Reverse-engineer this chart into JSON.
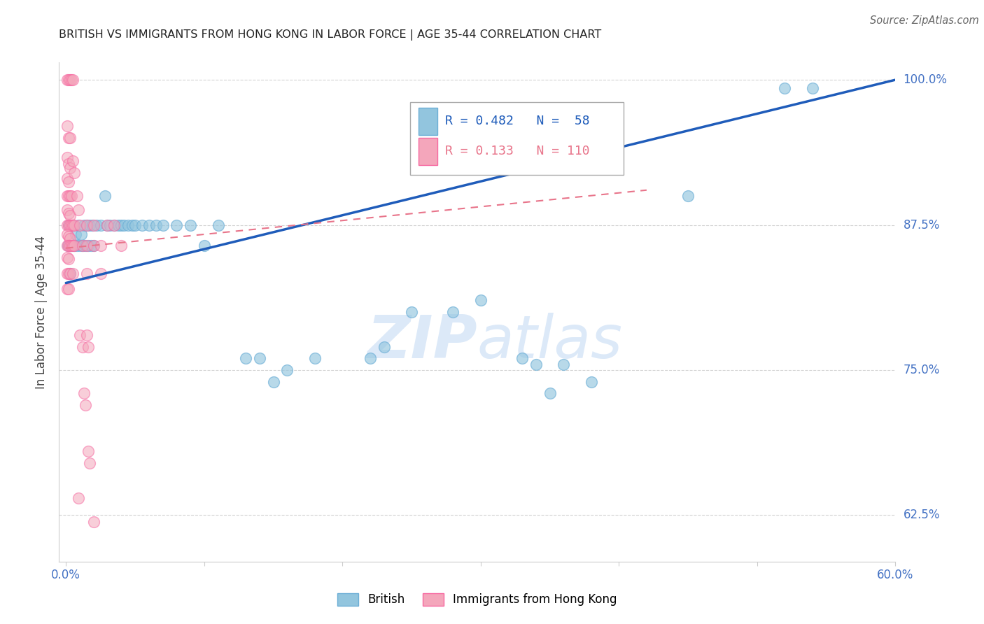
{
  "title": "BRITISH VS IMMIGRANTS FROM HONG KONG IN LABOR FORCE | AGE 35-44 CORRELATION CHART",
  "source": "Source: ZipAtlas.com",
  "ylabel": "In Labor Force | Age 35-44",
  "xlim": [
    -0.005,
    0.6
  ],
  "ylim": [
    0.585,
    1.015
  ],
  "yticks": [
    0.625,
    0.75,
    0.875,
    1.0
  ],
  "ytick_labels": [
    "62.5%",
    "75.0%",
    "87.5%",
    "100.0%"
  ],
  "xticks": [
    0.0,
    0.1,
    0.2,
    0.3,
    0.4,
    0.5,
    0.6
  ],
  "xtick_labels": [
    "0.0%",
    "",
    "",
    "",
    "",
    "",
    "60.0%"
  ],
  "axis_color": "#4472c4",
  "grid_color": "#c8c8c8",
  "watermark_zip": "ZIP",
  "watermark_atlas": "atlas",
  "watermark_color": "#dce9f8",
  "legend_blue_label": "British",
  "legend_pink_label": "Immigrants from Hong Kong",
  "blue_R": 0.482,
  "blue_N": 58,
  "pink_R": 0.133,
  "pink_N": 110,
  "blue_color": "#92c5de",
  "pink_color": "#f4a6bb",
  "blue_edge_color": "#6baed6",
  "pink_edge_color": "#f768a1",
  "trendline_blue_color": "#1f5cba",
  "trendline_pink_color": "#e8748a",
  "blue_scatter": [
    [
      0.0015,
      0.857
    ],
    [
      0.002,
      0.875
    ],
    [
      0.003,
      0.833
    ],
    [
      0.004,
      0.857
    ],
    [
      0.005,
      0.875
    ],
    [
      0.006,
      0.857
    ],
    [
      0.007,
      0.867
    ],
    [
      0.008,
      0.857
    ],
    [
      0.009,
      0.875
    ],
    [
      0.01,
      0.857
    ],
    [
      0.011,
      0.867
    ],
    [
      0.012,
      0.857
    ],
    [
      0.013,
      0.875
    ],
    [
      0.014,
      0.857
    ],
    [
      0.015,
      0.875
    ],
    [
      0.016,
      0.857
    ],
    [
      0.017,
      0.875
    ],
    [
      0.018,
      0.857
    ],
    [
      0.019,
      0.875
    ],
    [
      0.02,
      0.857
    ],
    [
      0.022,
      0.875
    ],
    [
      0.025,
      0.875
    ],
    [
      0.028,
      0.9
    ],
    [
      0.03,
      0.875
    ],
    [
      0.032,
      0.875
    ],
    [
      0.035,
      0.875
    ],
    [
      0.038,
      0.875
    ],
    [
      0.04,
      0.875
    ],
    [
      0.042,
      0.875
    ],
    [
      0.045,
      0.875
    ],
    [
      0.048,
      0.875
    ],
    [
      0.05,
      0.875
    ],
    [
      0.055,
      0.875
    ],
    [
      0.06,
      0.875
    ],
    [
      0.065,
      0.875
    ],
    [
      0.07,
      0.875
    ],
    [
      0.08,
      0.875
    ],
    [
      0.09,
      0.875
    ],
    [
      0.1,
      0.857
    ],
    [
      0.11,
      0.875
    ],
    [
      0.13,
      0.76
    ],
    [
      0.14,
      0.76
    ],
    [
      0.15,
      0.74
    ],
    [
      0.16,
      0.75
    ],
    [
      0.18,
      0.76
    ],
    [
      0.22,
      0.76
    ],
    [
      0.23,
      0.77
    ],
    [
      0.25,
      0.8
    ],
    [
      0.28,
      0.8
    ],
    [
      0.3,
      0.81
    ],
    [
      0.33,
      0.76
    ],
    [
      0.34,
      0.755
    ],
    [
      0.35,
      0.73
    ],
    [
      0.36,
      0.755
    ],
    [
      0.38,
      0.74
    ],
    [
      0.45,
      0.9
    ],
    [
      0.52,
      0.993
    ],
    [
      0.54,
      0.993
    ]
  ],
  "pink_scatter": [
    [
      0.001,
      1.0
    ],
    [
      0.002,
      1.0
    ],
    [
      0.003,
      1.0
    ],
    [
      0.004,
      1.0
    ],
    [
      0.005,
      1.0
    ],
    [
      0.001,
      0.96
    ],
    [
      0.002,
      0.95
    ],
    [
      0.003,
      0.95
    ],
    [
      0.001,
      0.933
    ],
    [
      0.002,
      0.928
    ],
    [
      0.003,
      0.924
    ],
    [
      0.001,
      0.915
    ],
    [
      0.002,
      0.912
    ],
    [
      0.001,
      0.9
    ],
    [
      0.002,
      0.9
    ],
    [
      0.003,
      0.9
    ],
    [
      0.004,
      0.9
    ],
    [
      0.001,
      0.888
    ],
    [
      0.002,
      0.885
    ],
    [
      0.003,
      0.883
    ],
    [
      0.001,
      0.875
    ],
    [
      0.002,
      0.875
    ],
    [
      0.003,
      0.875
    ],
    [
      0.004,
      0.875
    ],
    [
      0.001,
      0.867
    ],
    [
      0.002,
      0.865
    ],
    [
      0.003,
      0.863
    ],
    [
      0.001,
      0.857
    ],
    [
      0.002,
      0.857
    ],
    [
      0.003,
      0.857
    ],
    [
      0.004,
      0.857
    ],
    [
      0.001,
      0.847
    ],
    [
      0.002,
      0.846
    ],
    [
      0.001,
      0.833
    ],
    [
      0.002,
      0.833
    ],
    [
      0.003,
      0.833
    ],
    [
      0.001,
      0.82
    ],
    [
      0.002,
      0.82
    ],
    [
      0.005,
      0.93
    ],
    [
      0.006,
      0.92
    ],
    [
      0.005,
      0.875
    ],
    [
      0.006,
      0.875
    ],
    [
      0.005,
      0.857
    ],
    [
      0.006,
      0.857
    ],
    [
      0.005,
      0.833
    ],
    [
      0.008,
      0.9
    ],
    [
      0.009,
      0.888
    ],
    [
      0.01,
      0.875
    ],
    [
      0.012,
      0.857
    ],
    [
      0.015,
      0.875
    ],
    [
      0.015,
      0.857
    ],
    [
      0.015,
      0.833
    ],
    [
      0.02,
      0.875
    ],
    [
      0.02,
      0.857
    ],
    [
      0.025,
      0.857
    ],
    [
      0.025,
      0.833
    ],
    [
      0.03,
      0.875
    ],
    [
      0.035,
      0.875
    ],
    [
      0.04,
      0.857
    ],
    [
      0.01,
      0.78
    ],
    [
      0.012,
      0.77
    ],
    [
      0.015,
      0.78
    ],
    [
      0.016,
      0.77
    ],
    [
      0.013,
      0.73
    ],
    [
      0.014,
      0.72
    ],
    [
      0.016,
      0.68
    ],
    [
      0.017,
      0.67
    ],
    [
      0.009,
      0.64
    ],
    [
      0.02,
      0.619
    ]
  ],
  "blue_trend_x": [
    0.0,
    0.6
  ],
  "blue_trend_y": [
    0.825,
    1.0
  ],
  "pink_trend_x": [
    0.0,
    0.42
  ],
  "pink_trend_y": [
    0.855,
    0.905
  ]
}
